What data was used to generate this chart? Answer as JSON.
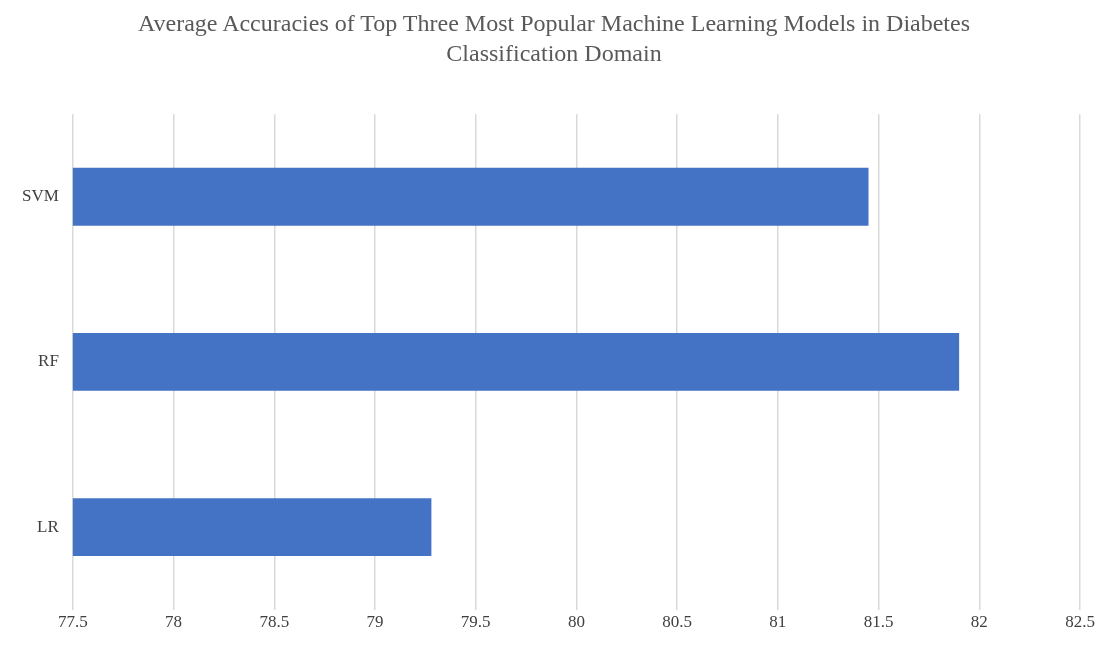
{
  "chart_data": {
    "type": "bar",
    "orientation": "horizontal",
    "title": "Average Accuracies of Top Three Most Popular Machine Learning Models in Diabetes Classification Domain",
    "categories": [
      "SVM",
      "RF",
      "LR"
    ],
    "values": [
      81.45,
      81.9,
      79.28
    ],
    "color": "#4472c4",
    "xlim": [
      77.5,
      82.5
    ],
    "xticks": [
      77.5,
      78,
      78.5,
      79,
      79.5,
      80,
      80.5,
      81,
      81.5,
      82,
      82.5
    ],
    "grid": "x",
    "legend": false
  }
}
